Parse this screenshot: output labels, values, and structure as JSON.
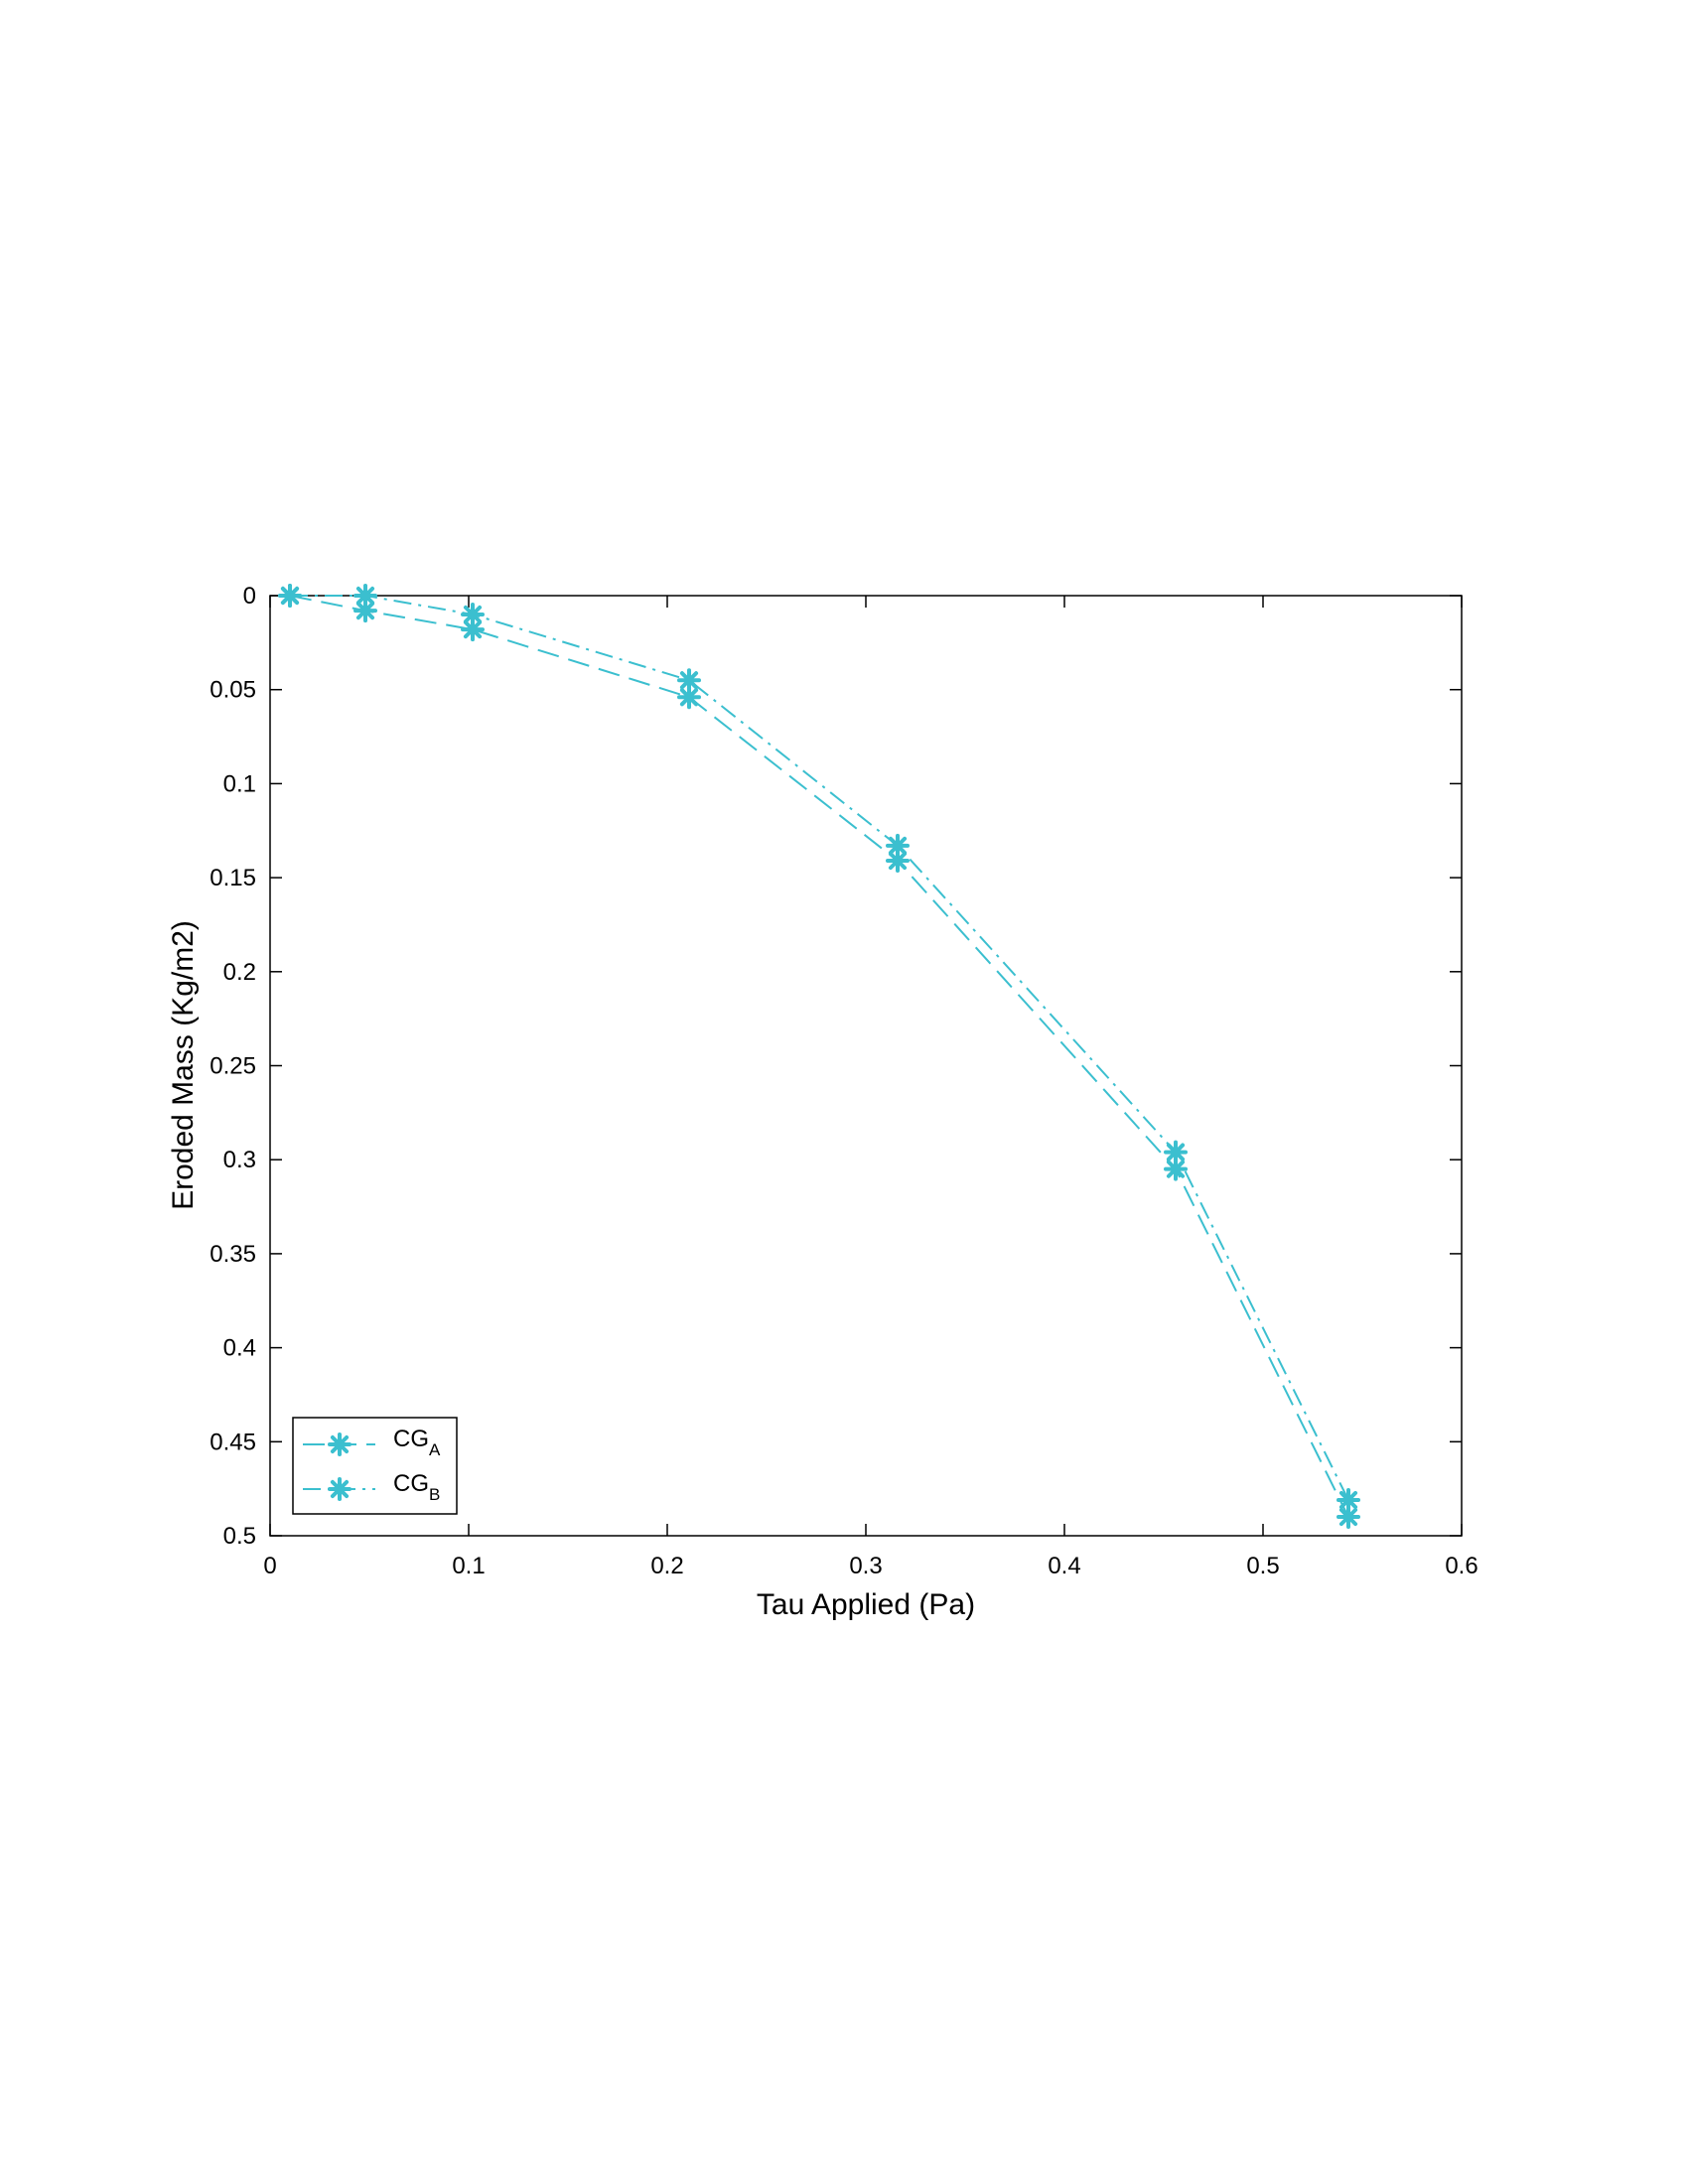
{
  "chart_data": {
    "type": "line",
    "xlabel": "Tau Applied  (Pa)",
    "ylabel": "Eroded Mass  (Kg/m2)",
    "xlim": [
      0,
      0.6
    ],
    "ylim": [
      0,
      0.5
    ],
    "y_reversed": true,
    "grid": false,
    "legend_position": "bottom-left",
    "color": "#3bbfcf",
    "x_ticks": [
      "0",
      "0.1",
      "0.2",
      "0.3",
      "0.4",
      "0.5",
      "0.6"
    ],
    "y_ticks": [
      "0",
      "0.05",
      "0.1",
      "0.15",
      "0.2",
      "0.25",
      "0.3",
      "0.35",
      "0.4",
      "0.45",
      "0.5"
    ],
    "series": [
      {
        "name": "CG",
        "subscript": "A",
        "line_style": "dashed",
        "marker": "asterisk",
        "x": [
          0.01,
          0.048,
          0.102,
          0.211,
          0.316,
          0.456,
          0.543
        ],
        "y": [
          0.0,
          0.008,
          0.018,
          0.054,
          0.141,
          0.305,
          0.49
        ]
      },
      {
        "name": "CG",
        "subscript": "B",
        "line_style": "dash-dot",
        "marker": "asterisk",
        "x": [
          0.01,
          0.048,
          0.102,
          0.211,
          0.316,
          0.456,
          0.543
        ],
        "y": [
          0.0,
          0.0,
          0.01,
          0.045,
          0.133,
          0.296,
          0.481
        ]
      }
    ]
  }
}
